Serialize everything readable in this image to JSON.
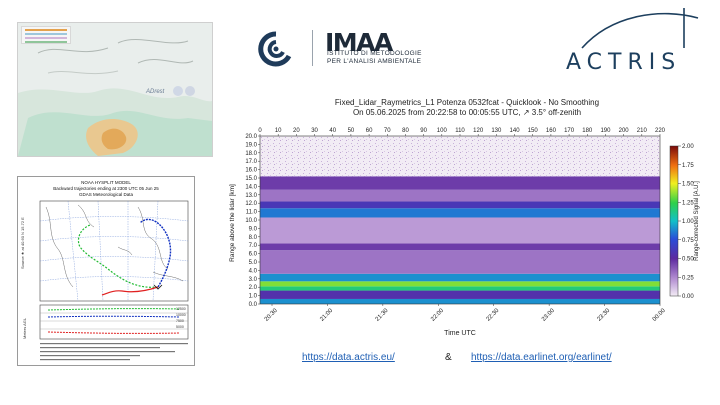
{
  "dust_map": {
    "watermark": "ADrest"
  },
  "hysplit": {
    "title": [
      "NOAA HYSPLIT MODEL",
      "Backward trajectories ending at 2300 UTC 05 Jun 25",
      "GDAS Meteorological Data"
    ],
    "source_label": "Source ★ at 40.60 N 15.72 E",
    "height_axis_label": "Meters AGL",
    "height_ticks": [
      "12500",
      "10000",
      "7500",
      "5000"
    ],
    "colors": {
      "red": "#e02020",
      "blue": "#1030c0",
      "green": "#22bb33",
      "source": "#111111"
    }
  },
  "logos": {
    "imaa": "IMAA",
    "imaa_line1": "ISTITUTO DI METODOLOGIE",
    "imaa_line2": "PER L'ANALISI AMBIENTALE",
    "actris": "ACTRIS"
  },
  "chart_data": {
    "type": "heatmap",
    "title": "Fixed_Lidar_Raymetrics_L1 Potenza 0532fcat - Quicklook - No Smoothing",
    "subtitle": "On 05.06.2025 from 20:22:58 to 00:05:55 UTC, ↗ 3.5° off-zenith",
    "xlabel": "Time UTC",
    "ylabel": "Range above the lidar [km]",
    "colorbar_label": "Range-corrected Signal [A.U.]",
    "x_top_ticks": [
      "0",
      "10",
      "20",
      "30",
      "40",
      "50",
      "60",
      "70",
      "80",
      "90",
      "100",
      "110",
      "120",
      "130",
      "140",
      "150",
      "160",
      "170",
      "180",
      "190",
      "200",
      "210",
      "220"
    ],
    "x_bottom_ticks": [
      "20:30",
      "21:00",
      "21:30",
      "22:00",
      "22:30",
      "23:00",
      "23:30",
      "00:00"
    ],
    "y_ticks": [
      "0.0",
      "1.0",
      "2.0",
      "3.0",
      "4.0",
      "5.0",
      "6.0",
      "7.0",
      "8.0",
      "9.0",
      "10.0",
      "11.0",
      "12.0",
      "13.0",
      "14.0",
      "15.0",
      "16.0",
      "17.0",
      "18.0",
      "19.0",
      "20.0"
    ],
    "colorbar_ticks": [
      "0.00",
      "0.25",
      "0.50",
      "0.75",
      "1.00",
      "1.25",
      "1.50",
      "1.75",
      "2.00"
    ],
    "ylim": [
      0,
      20
    ],
    "xlim": [
      0,
      220
    ],
    "clim": [
      0,
      2
    ],
    "layers": [
      {
        "bottom_km": 0.0,
        "top_km": 0.6,
        "value": 0.9
      },
      {
        "bottom_km": 0.6,
        "top_km": 1.6,
        "value": 0.55
      },
      {
        "bottom_km": 1.6,
        "top_km": 2.1,
        "value": 1.15
      },
      {
        "bottom_km": 2.1,
        "top_km": 2.7,
        "value": 1.35
      },
      {
        "bottom_km": 2.7,
        "top_km": 3.6,
        "value": 0.9
      },
      {
        "bottom_km": 3.6,
        "top_km": 6.4,
        "value": 0.3
      },
      {
        "bottom_km": 6.4,
        "top_km": 7.2,
        "value": 0.45
      },
      {
        "bottom_km": 7.2,
        "top_km": 10.3,
        "value": 0.2
      },
      {
        "bottom_km": 10.3,
        "top_km": 11.4,
        "value": 0.85
      },
      {
        "bottom_km": 11.4,
        "top_km": 12.2,
        "value": 0.6
      },
      {
        "bottom_km": 12.2,
        "top_km": 13.6,
        "value": 0.3
      },
      {
        "bottom_km": 13.6,
        "top_km": 15.2,
        "value": 0.45
      },
      {
        "bottom_km": 15.2,
        "top_km": 20.0,
        "value": 0.08
      }
    ]
  },
  "links": {
    "actris": "https://data.actris.eu/",
    "separator": "&",
    "earlinet": "https://data.earlinet.org/earlinet/"
  }
}
